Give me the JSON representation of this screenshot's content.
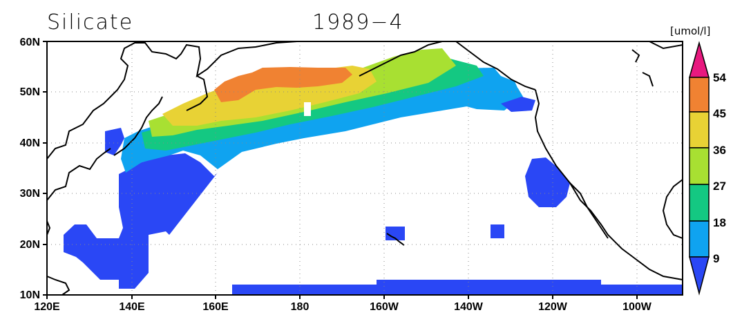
{
  "title": {
    "variable": "Silicate",
    "period": "1989−4",
    "unit": "[umol/l]"
  },
  "map": {
    "region": "North Pacific",
    "lon_range": [
      "120E",
      "90W"
    ],
    "lat_range": [
      "10N",
      "60N"
    ],
    "x_tick_labels": [
      "120E",
      "140E",
      "160E",
      "180",
      "160W",
      "140W",
      "120W",
      "100W"
    ],
    "y_tick_labels": [
      "10N",
      "20N",
      "30N",
      "40N",
      "50N",
      "60N"
    ],
    "grid": "dotted"
  },
  "colorbar": {
    "levels": [
      "9",
      "18",
      "27",
      "36",
      "45",
      "54"
    ],
    "colors": [
      "#2a47f5",
      "#0fa3f0",
      "#14c882",
      "#a8e032",
      "#e8d235",
      "#f08232",
      "#e8197f"
    ],
    "extend": "both"
  }
}
